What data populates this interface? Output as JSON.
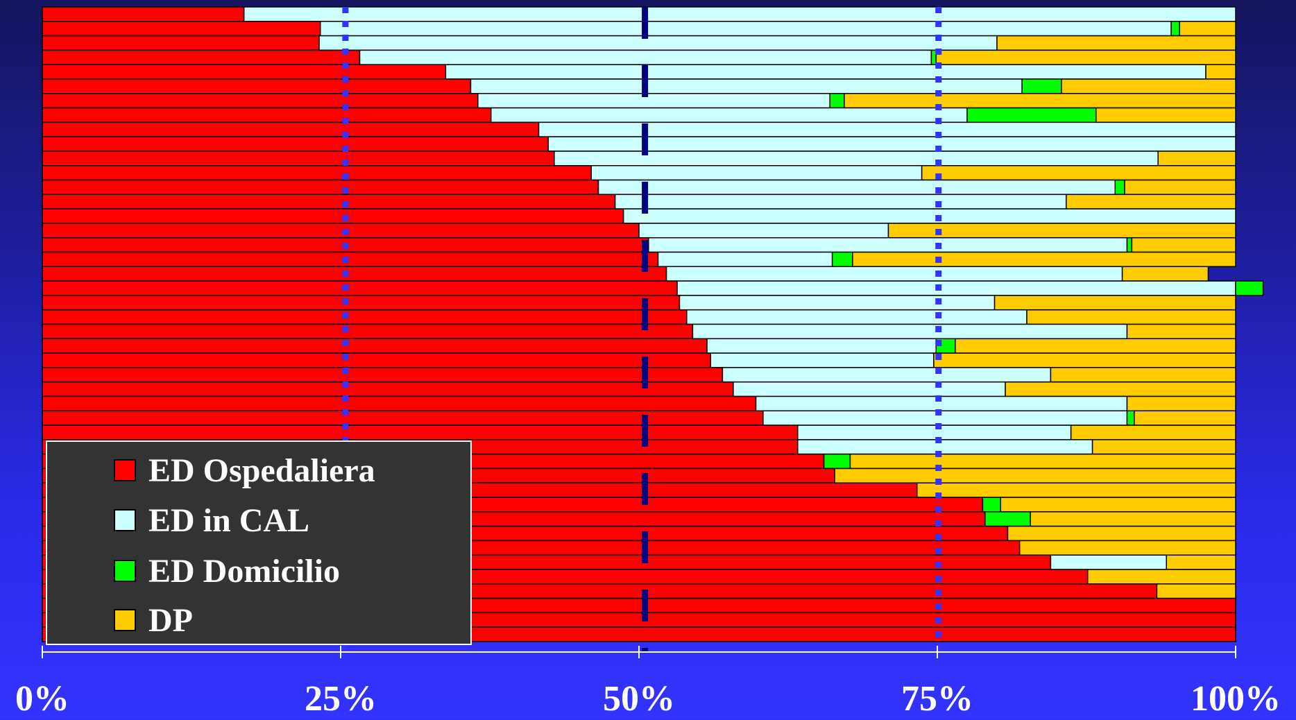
{
  "chart_data": {
    "type": "bar",
    "orientation": "horizontal",
    "stacked": true,
    "percent": true,
    "title": "",
    "xlabel": "",
    "ylabel": "",
    "xlim": [
      0,
      100
    ],
    "x_ticks": [
      "0%",
      "25%",
      "50%",
      "75%",
      "100%"
    ],
    "reference_lines": [
      25.4,
      50.5,
      75.1
    ],
    "legend_position": "bottom-left",
    "series": [
      {
        "name": "ED Ospedaliera",
        "color": "#ff0000",
        "values": [
          16.9,
          23.3,
          23.2,
          26.6,
          33.8,
          35.9,
          36.5,
          37.6,
          41.6,
          42.4,
          42.9,
          46.0,
          46.6,
          48.0,
          48.7,
          50.0,
          50.8,
          51.6,
          52.3,
          53.2,
          53.4,
          54.0,
          54.5,
          55.7,
          56.0,
          57.0,
          57.9,
          59.8,
          60.4,
          63.3,
          63.3,
          65.5,
          66.4,
          73.3,
          78.8,
          79.0,
          80.9,
          81.9,
          84.5,
          87.6,
          93.4,
          100,
          100,
          100
        ]
      },
      {
        "name": "ED in CAL",
        "color": "#ccffff",
        "values": [
          83.1,
          71.3,
          56.8,
          47.9,
          63.7,
          46.2,
          29.5,
          39.9,
          58.4,
          57.6,
          50.6,
          27.7,
          43.3,
          37.8,
          51.3,
          20.9,
          40.1,
          14.6,
          38.2,
          46.8,
          26.4,
          28.5,
          36.4,
          19.2,
          18.7,
          27.5,
          22.8,
          31.1,
          30.5,
          22.9,
          24.7,
          0,
          0,
          0,
          0,
          0,
          0,
          0,
          9.7,
          0,
          0,
          0,
          0,
          0
        ]
      },
      {
        "name": "ED Domicilio",
        "color": "#00ff00",
        "values": [
          0,
          0.7,
          0,
          0.4,
          0,
          3.3,
          1.2,
          10.8,
          0,
          0,
          0,
          0,
          0.8,
          0,
          0,
          0,
          0.4,
          1.7,
          0,
          2.3,
          0,
          0,
          0,
          1.6,
          0,
          0,
          0,
          0,
          0.6,
          0,
          0,
          2.2,
          0,
          0,
          1.5,
          3.8,
          0,
          0,
          0,
          0,
          0,
          0,
          0,
          0
        ]
      },
      {
        "name": "DP",
        "color": "#ffcc00",
        "values": [
          0,
          4.7,
          20.0,
          25.1,
          2.5,
          14.6,
          32.8,
          11.7,
          0,
          0,
          6.5,
          26.3,
          9.3,
          14.2,
          0,
          29.1,
          8.7,
          32.1,
          7.2,
          0,
          20.2,
          17.5,
          9.1,
          23.5,
          25.3,
          15.5,
          19.3,
          9.1,
          8.5,
          13.8,
          12.0,
          32.3,
          33.6,
          26.7,
          19.7,
          17.2,
          19.1,
          18.1,
          5.8,
          12.4,
          6.6,
          0,
          0,
          0
        ]
      }
    ]
  },
  "legend": {
    "items": [
      {
        "label": "ED Ospedaliera",
        "color": "#ff0000"
      },
      {
        "label": "ED in CAL",
        "color": "#ccffff"
      },
      {
        "label": "ED Domicilio",
        "color": "#00ff00"
      },
      {
        "label": "DP",
        "color": "#ffcc00"
      }
    ]
  }
}
